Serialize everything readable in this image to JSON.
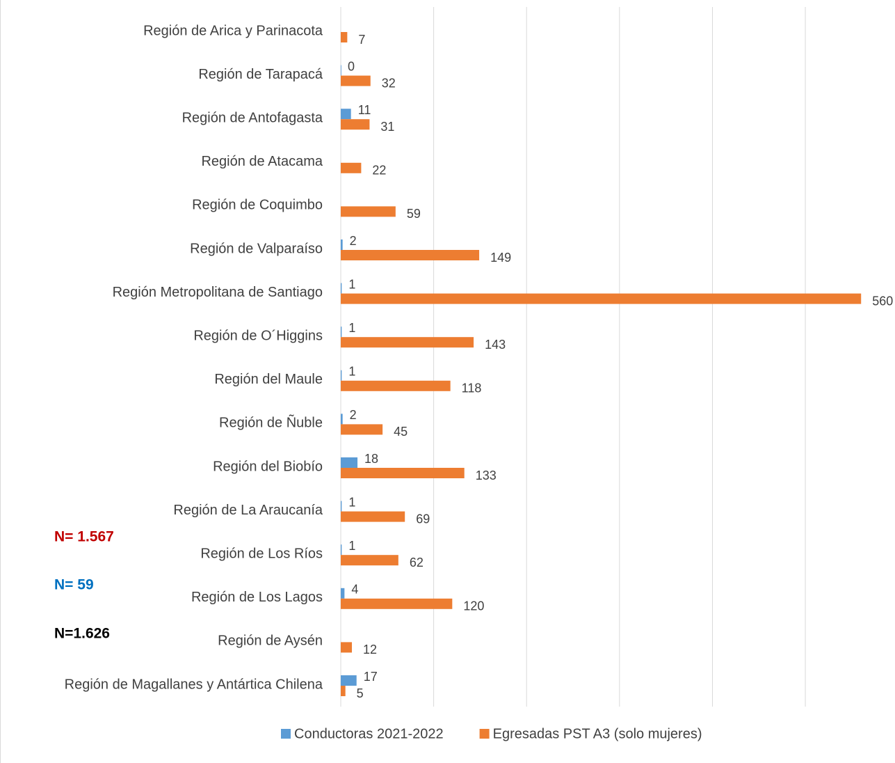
{
  "chart_data": {
    "type": "hbar",
    "categories": [
      "Región de Arica y Parinacota",
      "Región de Tarapacá",
      "Región de Antofagasta",
      "Región de Atacama",
      "Región de Coquimbo",
      "Región de Valparaíso",
      "Región Metropolitana de Santiago",
      "Región de O´Higgins",
      "Región del Maule",
      "Región de Ñuble",
      "Región del Biobío",
      "Región de La Araucanía",
      "Región de Los Ríos",
      "Región de Los Lagos",
      "Región de Aysén",
      "Región de Magallanes y Antártica Chilena"
    ],
    "series": [
      {
        "name": "Conductoras 2021-2022",
        "color": "#5b9bd5",
        "values": [
          null,
          0,
          11,
          null,
          null,
          2,
          1,
          1,
          1,
          2,
          18,
          1,
          1,
          4,
          null,
          17
        ]
      },
      {
        "name": "Egresadas PST A3 (solo mujeres)",
        "color": "#ed7d31",
        "values": [
          7,
          32,
          31,
          22,
          59,
          149,
          560,
          143,
          118,
          45,
          133,
          69,
          62,
          120,
          12,
          5
        ]
      }
    ],
    "xlim": [
      0,
      595
    ],
    "xticks": [
      0,
      100,
      200,
      300,
      400,
      500
    ],
    "grid": true,
    "annotations": [
      {
        "text": "N= 1.567",
        "color": "#c00000"
      },
      {
        "text": "N= 59",
        "color": "#0070c0"
      },
      {
        "text": "N=1.626",
        "color": "#000000"
      }
    ]
  }
}
